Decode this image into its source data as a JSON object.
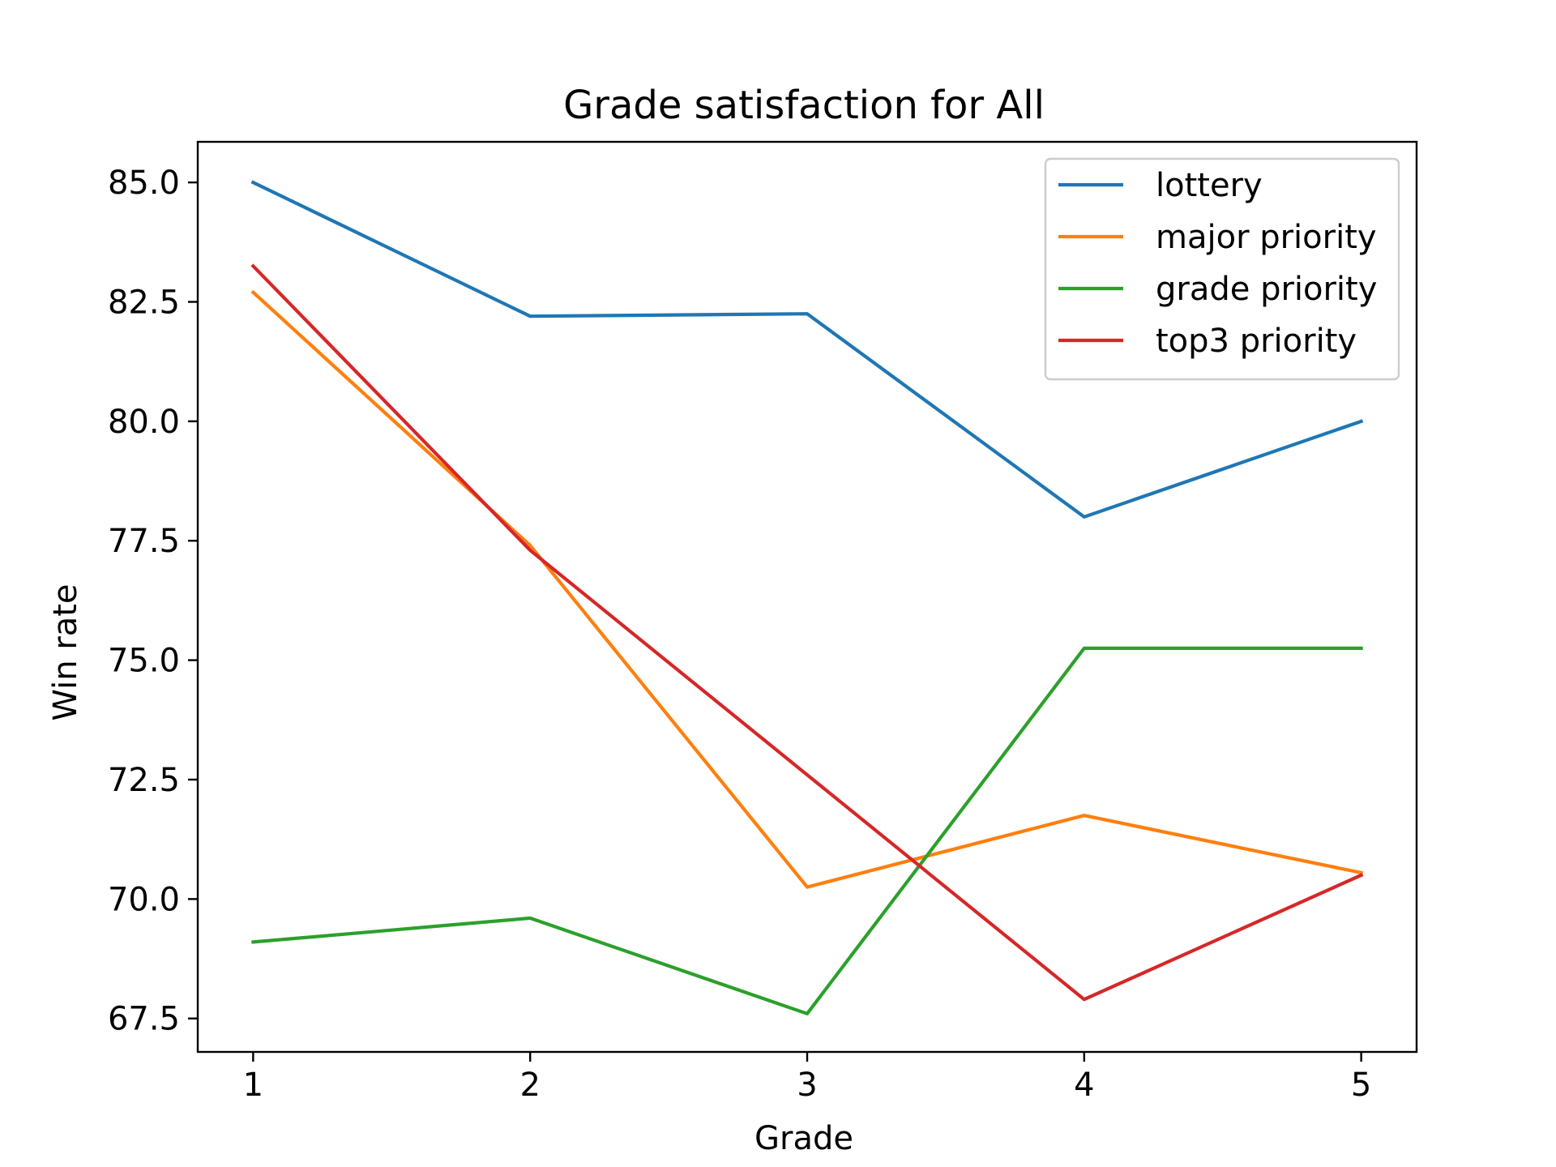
{
  "chart_data": {
    "type": "line",
    "title": "Grade satisfaction for All",
    "xlabel": "Grade",
    "ylabel": "Win rate",
    "x": [
      1,
      2,
      3,
      4,
      5
    ],
    "x_tick_labels": [
      "1",
      "2",
      "3",
      "4",
      "5"
    ],
    "xlim": [
      0.8,
      5.2
    ],
    "ylim": [
      66.8,
      85.85
    ],
    "y_ticks": [
      67.5,
      70.0,
      72.5,
      75.0,
      77.5,
      80.0,
      82.5,
      85.0
    ],
    "y_tick_labels": [
      "67.5",
      "70.0",
      "72.5",
      "75.0",
      "77.5",
      "80.0",
      "82.5",
      "85.0"
    ],
    "grid": false,
    "legend_position": "top-right",
    "series": [
      {
        "name": "lottery",
        "color": "#1f77b4",
        "values": [
          85.0,
          82.2,
          82.25,
          78.0,
          80.0
        ]
      },
      {
        "name": "major priority",
        "color": "#ff7f0e",
        "values": [
          82.7,
          77.4,
          70.25,
          71.75,
          70.55
        ]
      },
      {
        "name": "grade priority",
        "color": "#2ca02c",
        "values": [
          69.1,
          69.6,
          67.6,
          75.25,
          75.25
        ]
      },
      {
        "name": "top3 priority",
        "color": "#d62728",
        "values": [
          83.25,
          77.3,
          72.6,
          67.9,
          70.5
        ]
      }
    ]
  }
}
